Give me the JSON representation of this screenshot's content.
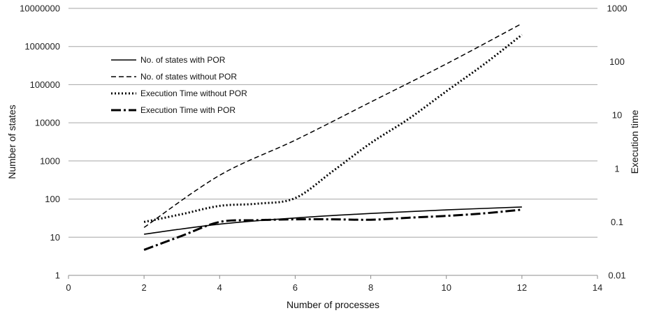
{
  "chart_data": {
    "type": "line",
    "title": "",
    "xlabel": "Number of processes",
    "ylabel": "Number of states",
    "y2label": "Execution time",
    "xlim": [
      0,
      14
    ],
    "x_ticks": [
      0,
      2,
      4,
      6,
      8,
      10,
      12,
      14
    ],
    "ylim": [
      1,
      10000000
    ],
    "y_scale": "log",
    "y_ticks": [
      "1",
      "10",
      "100",
      "1000",
      "10000",
      "100000",
      "1000000",
      "10000000"
    ],
    "y2lim": [
      0.01,
      1000
    ],
    "y2_scale": "log",
    "y2_ticks": [
      "0.01",
      "0.1",
      "1",
      "10",
      "100",
      "1000"
    ],
    "grid": "horizontal",
    "legend_position": "top-left",
    "series": [
      {
        "name": "No. of states with POR",
        "axis": "left",
        "style": "solid",
        "x": [
          2,
          4,
          6,
          8,
          10,
          12
        ],
        "values": [
          12,
          22,
          32,
          42,
          52,
          62
        ]
      },
      {
        "name": "No. of states without POR",
        "axis": "left",
        "style": "dashed",
        "x": [
          2,
          4,
          6,
          8,
          10,
          12
        ],
        "values": [
          18,
          420,
          3500,
          35000,
          350000,
          4000000
        ]
      },
      {
        "name": "Execution Time without POR",
        "axis": "right",
        "style": "dotted",
        "x": [
          2,
          3,
          4,
          5,
          6,
          7,
          8,
          9,
          10,
          11,
          12
        ],
        "values": [
          0.1,
          0.14,
          0.2,
          0.22,
          0.28,
          0.9,
          3.0,
          8.5,
          28,
          90,
          320
        ]
      },
      {
        "name": "Execution Time with POR",
        "axis": "right",
        "style": "dash-dot",
        "x": [
          2,
          3,
          4,
          5,
          6,
          7,
          8,
          9,
          10,
          11,
          12
        ],
        "values": [
          0.03,
          0.055,
          0.1,
          0.108,
          0.112,
          0.112,
          0.11,
          0.12,
          0.13,
          0.145,
          0.17
        ]
      }
    ]
  }
}
